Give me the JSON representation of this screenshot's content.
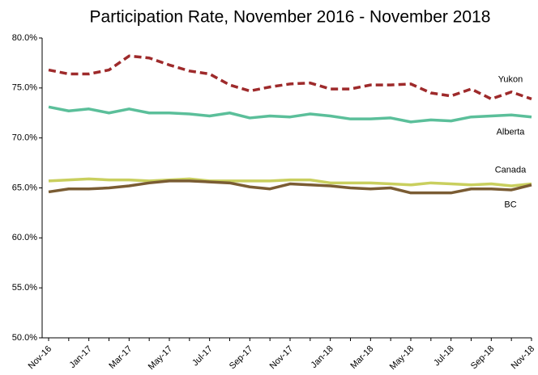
{
  "chart_data": {
    "type": "line",
    "title": "Participation Rate, November 2016 - November 2018",
    "categories": [
      "Nov-16",
      null,
      "Jan-17",
      null,
      "Mar-17",
      null,
      "May-17",
      null,
      "Jul-17",
      null,
      "Sep-17",
      null,
      "Nov-17",
      null,
      "Jan-18",
      null,
      "Mar-18",
      null,
      "May-18",
      null,
      "Jul-18",
      null,
      "Sep-18",
      null,
      "Nov-18"
    ],
    "series": [
      {
        "name": "Yukon",
        "color": "#9e2a2b",
        "line_style": "dashed",
        "values": [
          76.8,
          76.4,
          76.4,
          76.8,
          78.2,
          78.0,
          77.3,
          76.7,
          76.4,
          75.3,
          74.7,
          75.1,
          75.4,
          75.5,
          74.9,
          74.9,
          75.3,
          75.3,
          75.4,
          74.5,
          74.2,
          74.9,
          73.9,
          74.6,
          73.9
        ]
      },
      {
        "name": "Alberta",
        "color": "#5bbf9a",
        "line_style": "solid",
        "values": [
          73.1,
          72.7,
          72.9,
          72.5,
          72.9,
          72.5,
          72.5,
          72.4,
          72.2,
          72.5,
          72.0,
          72.2,
          72.1,
          72.4,
          72.2,
          71.9,
          71.9,
          72.0,
          71.6,
          71.8,
          71.7,
          72.1,
          72.2,
          72.3,
          72.1
        ]
      },
      {
        "name": "Canada",
        "color": "#c9cf5e",
        "line_style": "solid",
        "values": [
          65.7,
          65.8,
          65.9,
          65.8,
          65.8,
          65.7,
          65.8,
          65.9,
          65.7,
          65.7,
          65.7,
          65.7,
          65.8,
          65.8,
          65.5,
          65.5,
          65.5,
          65.4,
          65.3,
          65.5,
          65.4,
          65.3,
          65.4,
          65.2,
          65.4
        ]
      },
      {
        "name": "BC",
        "color": "#7a5c33",
        "line_style": "solid",
        "values": [
          64.6,
          64.9,
          64.9,
          65.0,
          65.2,
          65.5,
          65.7,
          65.7,
          65.6,
          65.5,
          65.1,
          64.9,
          65.4,
          65.3,
          65.2,
          65.0,
          64.9,
          65.0,
          64.5,
          64.5,
          64.5,
          64.9,
          64.9,
          64.8,
          65.3
        ]
      }
    ],
    "ylim": [
      50,
      80
    ],
    "yticks": [
      {
        "value": 50,
        "label": "50.0%"
      },
      {
        "value": 55,
        "label": "55.0%"
      },
      {
        "value": 60,
        "label": "60.0%"
      },
      {
        "value": 65,
        "label": "65.0%"
      },
      {
        "value": 70,
        "label": "70.0%"
      },
      {
        "value": 75,
        "label": "75.0%"
      },
      {
        "value": 80,
        "label": "80.0%"
      }
    ],
    "grid": false
  }
}
